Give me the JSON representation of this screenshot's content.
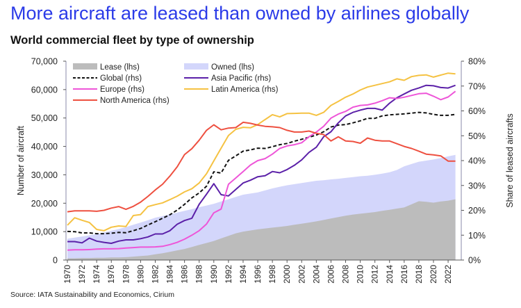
{
  "title": "More aircraft are leased than owned by airlines globally",
  "subtitle": "World commercial fleet by type of ownership",
  "source": "Source: IATA Sustainability and Economics, Cirium",
  "chart_data": {
    "type": "area+line",
    "title": "World commercial fleet by type of ownership",
    "ylabel_left": "Number of aircraft",
    "ylabel_right": "Share of leased aircrafts",
    "ylim_left": [
      0,
      70000
    ],
    "ylim_right": [
      0,
      80
    ],
    "left_tick_labels": [
      "0",
      "10,000",
      "20,000",
      "30,000",
      "40,000",
      "50,000",
      "60,000",
      "70,000"
    ],
    "right_tick_labels": [
      "0%",
      "10%",
      "20%",
      "30%",
      "40%",
      "50%",
      "60%",
      "70%",
      "80%"
    ],
    "x_tick_labels": [
      "1970",
      "1972",
      "1974",
      "1976",
      "1978",
      "1980",
      "1982",
      "1984",
      "1986",
      "1988",
      "1990",
      "1992",
      "1994",
      "1996",
      "1998",
      "2000",
      "2002",
      "2004",
      "2006",
      "2008",
      "2010",
      "2012",
      "2014",
      "2016",
      "2018",
      "2020",
      "2022"
    ],
    "x_start": 1970,
    "x_end": 2023,
    "legend_position": "top-left",
    "series": [
      {
        "name": "Lease (lhs)",
        "kind": "area",
        "axis": "left",
        "color": "#bcbcbc",
        "values": [
          600,
          600,
          700,
          700,
          800,
          800,
          900,
          900,
          1000,
          1200,
          1400,
          1600,
          2000,
          2400,
          2900,
          3400,
          3900,
          4600,
          5300,
          6000,
          6700,
          7600,
          8500,
          9400,
          10000,
          10400,
          10800,
          11100,
          11400,
          11700,
          12000,
          12400,
          12800,
          13200,
          13600,
          14100,
          14600,
          15100,
          15600,
          16000,
          16300,
          16600,
          16900,
          17300,
          17700,
          18100,
          18500,
          19600,
          20700,
          20500,
          20200,
          20600,
          20900,
          21400
        ]
      },
      {
        "name": "Owned (lhs)",
        "kind": "area",
        "axis": "left",
        "color": "#d3d6fb",
        "values": [
          6900,
          7300,
          7600,
          8000,
          8300,
          8900,
          9400,
          10000,
          10600,
          11200,
          11800,
          12400,
          12900,
          13100,
          13200,
          13300,
          13400,
          13300,
          13300,
          13200,
          13100,
          13000,
          12900,
          12800,
          13000,
          13000,
          13000,
          13400,
          13800,
          14100,
          14300,
          14300,
          14300,
          14300,
          14300,
          14000,
          13800,
          13500,
          13300,
          13200,
          13200,
          13100,
          13100,
          13100,
          13200,
          13600,
          14500,
          14200,
          13900,
          14500,
          15200,
          15300,
          15600,
          15600
        ]
      },
      {
        "name": "Global (rhs)",
        "kind": "line",
        "dashed": true,
        "axis": "right",
        "color": "#111111",
        "values": [
          11.5,
          11.4,
          10.9,
          10.9,
          10.6,
          10.6,
          10.8,
          11.1,
          11.0,
          11.8,
          12.7,
          14.1,
          15.4,
          16.8,
          18.2,
          20.1,
          22.4,
          25.0,
          27.0,
          29.7,
          35.5,
          35.0,
          40.1,
          41.9,
          43.8,
          44.3,
          45.0,
          44.9,
          45.6,
          46.4,
          46.9,
          47.8,
          48.6,
          49.4,
          50.3,
          51.6,
          53.5,
          54.3,
          54.5,
          55.2,
          56.0,
          57.0,
          57.0,
          58.0,
          58.4,
          58.6,
          58.8,
          59.1,
          59.4,
          59.2,
          58.6,
          58.2,
          58.2,
          58.6
        ]
      },
      {
        "name": "Asia Pacific (rhs)",
        "kind": "line",
        "axis": "right",
        "color": "#5b20a8",
        "values": [
          7.4,
          7.4,
          6.9,
          8.8,
          7.6,
          7.1,
          6.7,
          7.6,
          8.1,
          8.1,
          8.6,
          9.3,
          10.5,
          10.5,
          11.8,
          14.4,
          15.9,
          16.8,
          22.4,
          26.5,
          30.7,
          26.3,
          25.8,
          28.4,
          31.0,
          32.1,
          33.5,
          33.9,
          35.6,
          35.1,
          36.4,
          38.1,
          40.3,
          43.3,
          45.4,
          49.6,
          51.6,
          55.2,
          58.0,
          59.4,
          60.3,
          61.0,
          61.0,
          60.3,
          63.1,
          65.3,
          66.8,
          68.3,
          69.2,
          70.3,
          70.1,
          69.4,
          69.2,
          70.3
        ]
      },
      {
        "name": "Europe (rhs)",
        "kind": "line",
        "axis": "right",
        "color": "#ee55d8",
        "values": [
          4.0,
          4.1,
          4.1,
          4.2,
          4.4,
          4.5,
          4.5,
          4.6,
          4.8,
          5.0,
          5.2,
          5.2,
          5.3,
          5.5,
          6.2,
          7.1,
          8.4,
          10.0,
          11.8,
          14.5,
          19.0,
          20.5,
          30.5,
          33.0,
          35.6,
          38.2,
          40.0,
          40.8,
          42.6,
          44.9,
          45.9,
          46.4,
          47.2,
          49.6,
          51.5,
          53.8,
          57.1,
          58.7,
          59.8,
          61.5,
          62.2,
          62.4,
          63.1,
          64.1,
          65.3,
          65.0,
          65.5,
          66.2,
          66.9,
          67.1,
          65.9,
          64.5,
          65.6,
          67.9
        ]
      },
      {
        "name": "Latin America (rhs)",
        "kind": "line",
        "axis": "right",
        "color": "#f5c242",
        "values": [
          14.0,
          17.0,
          16.0,
          15.1,
          12.3,
          11.8,
          13.2,
          13.7,
          13.5,
          17.9,
          18.3,
          21.5,
          22.3,
          23.0,
          24.3,
          25.7,
          27.4,
          28.7,
          31.0,
          34.7,
          39.9,
          45.0,
          50.1,
          52.6,
          53.4,
          53.2,
          54.5,
          56.5,
          58.5,
          57.6,
          58.9,
          59.0,
          59.1,
          59.1,
          58.2,
          59.4,
          62.2,
          63.8,
          65.5,
          66.8,
          68.4,
          69.6,
          70.3,
          71.0,
          71.7,
          72.9,
          72.3,
          73.8,
          74.3,
          74.5,
          73.6,
          74.4,
          75.2,
          74.9
        ]
      },
      {
        "name": "North America (rhs)",
        "kind": "line",
        "axis": "right",
        "color": "#ee5040",
        "values": [
          19.4,
          19.8,
          19.8,
          19.8,
          19.6,
          20.0,
          20.9,
          21.5,
          20.4,
          21.6,
          23.3,
          25.6,
          28.2,
          30.5,
          33.8,
          37.5,
          42.4,
          44.8,
          48.2,
          52.2,
          54.4,
          52.4,
          53.1,
          53.3,
          55.4,
          55.0,
          54.3,
          53.8,
          53.6,
          53.3,
          52.2,
          51.5,
          51.5,
          51.9,
          51.0,
          50.5,
          47.9,
          49.6,
          47.9,
          47.7,
          47.0,
          49.1,
          48.2,
          47.9,
          47.9,
          46.8,
          45.7,
          44.9,
          43.8,
          42.6,
          42.3,
          41.9,
          39.8,
          39.8
        ]
      }
    ]
  }
}
